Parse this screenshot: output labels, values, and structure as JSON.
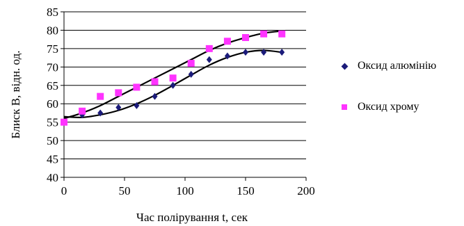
{
  "chart_data": {
    "type": "scatter",
    "xlabel": "Час полірування t, сек",
    "ylabel": "Блиск B, відн. од.",
    "xlim": [
      0,
      200
    ],
    "ylim": [
      40,
      85
    ],
    "x_ticks": [
      0,
      50,
      100,
      150,
      200
    ],
    "y_ticks": [
      40,
      45,
      50,
      55,
      60,
      65,
      70,
      75,
      80,
      85
    ],
    "grid": "horizontal",
    "legend_position": "right",
    "series": [
      {
        "name": "Оксид алюмінію",
        "marker": "diamond",
        "color": "#1b1b7a",
        "x": [
          0,
          15,
          30,
          45,
          60,
          75,
          90,
          105,
          120,
          135,
          150,
          165,
          180
        ],
        "y": [
          55,
          57,
          57.5,
          59,
          59.5,
          62,
          65,
          68,
          72,
          73,
          74,
          74,
          74
        ]
      },
      {
        "name": "Оксид хрому",
        "marker": "square",
        "color": "#ff33ff",
        "x": [
          0,
          15,
          30,
          45,
          60,
          75,
          90,
          105,
          120,
          135,
          150,
          165,
          180
        ],
        "y": [
          55,
          58,
          62,
          63,
          64.5,
          66,
          67,
          71,
          75,
          77,
          78,
          79,
          79
        ]
      }
    ],
    "trendlines": [
      {
        "series": "Оксид алюмінію",
        "x": [
          0,
          15,
          30,
          45,
          60,
          75,
          90,
          105,
          120,
          135,
          150,
          165,
          180
        ],
        "y": [
          56.5,
          56.3,
          57,
          58.2,
          60,
          62.3,
          65,
          67.8,
          70.5,
          72.6,
          74,
          74.5,
          74
        ]
      },
      {
        "series": "Оксид хрому",
        "x": [
          0,
          15,
          30,
          45,
          60,
          75,
          90,
          105,
          120,
          135,
          150,
          165,
          180
        ],
        "y": [
          56,
          57.5,
          59.5,
          62,
          64.5,
          67,
          69.5,
          72,
          74.5,
          76.5,
          78,
          79.2,
          79.8
        ]
      }
    ]
  }
}
